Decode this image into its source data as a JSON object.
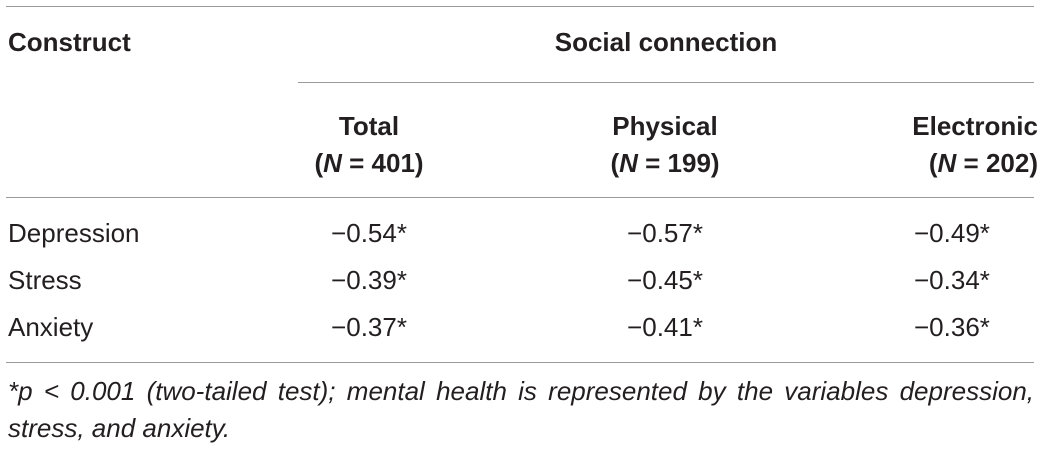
{
  "table": {
    "header": {
      "construct": "Construct",
      "group": "Social connection",
      "columns": [
        {
          "label": "Total",
          "n_prefix": "(",
          "n_symbol": "N",
          "n_value": " = 401)"
        },
        {
          "label": "Physical",
          "n_prefix": "(",
          "n_symbol": "N",
          "n_value": " = 199)"
        },
        {
          "label": "Electronic",
          "n_prefix": "(",
          "n_symbol": "N",
          "n_value": " = 202)"
        }
      ]
    },
    "rows": [
      {
        "label": "Depression",
        "values": [
          "−0.54*",
          "−0.57*",
          "−0.49*"
        ]
      },
      {
        "label": "Stress",
        "values": [
          "−0.39*",
          "−0.45*",
          "−0.34*"
        ]
      },
      {
        "label": "Anxiety",
        "values": [
          "−0.37*",
          "−0.41*",
          "−0.36*"
        ]
      }
    ],
    "footnote": "*p < 0.001 (two-tailed test); mental health is represented by the variables depression, stress, and anxiety."
  }
}
